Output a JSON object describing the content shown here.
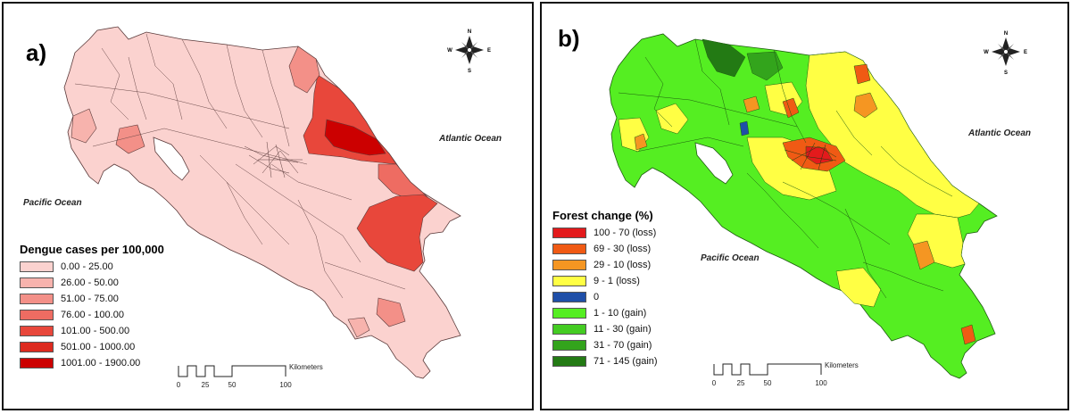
{
  "panel_a": {
    "label": "a)",
    "ocean_pacific": "Pacific Ocean",
    "ocean_atlantic": "Atlantic Ocean",
    "legend_title": "Dengue cases per 100,000",
    "legend": [
      {
        "label": "0.00 - 25.00",
        "color": "#fbd2cf"
      },
      {
        "label": "26.00 - 50.00",
        "color": "#f7b3ad"
      },
      {
        "label": "51.00 - 75.00",
        "color": "#f39088"
      },
      {
        "label": "76.00 - 100.00",
        "color": "#ee6c62"
      },
      {
        "label": "101.00 - 500.00",
        "color": "#e8473b"
      },
      {
        "label": "501.00 - 1000.00",
        "color": "#dd2a1f"
      },
      {
        "label": "1001.00 - 1900.00",
        "color": "#cc0000"
      }
    ],
    "scale": {
      "unit": "Kilometers",
      "ticks": [
        "0",
        "25",
        "50",
        "100"
      ]
    },
    "compass": {
      "n": "N",
      "s": "S",
      "e": "E",
      "w": "W"
    }
  },
  "panel_b": {
    "label": "b)",
    "ocean_pacific": "Pacific Ocean",
    "ocean_atlantic": "Atlantic Ocean",
    "legend_title": "Forest change (%)",
    "legend": [
      {
        "label": "100 - 70 (loss)",
        "color": "#e31a1c"
      },
      {
        "label": "69 - 30 (loss)",
        "color": "#f05a14"
      },
      {
        "label": "29 - 10 (loss)",
        "color": "#f59622"
      },
      {
        "label": "9 - 1 (loss)",
        "color": "#ffff44"
      },
      {
        "label": "0",
        "color": "#1f4fa8"
      },
      {
        "label": "1 - 10 (gain)",
        "color": "#55ee22"
      },
      {
        "label": "11 - 30 (gain)",
        "color": "#44cc22"
      },
      {
        "label": "31 - 70 (gain)",
        "color": "#33a41c"
      },
      {
        "label": "71 - 145 (gain)",
        "color": "#237a14"
      }
    ],
    "scale": {
      "unit": "Kilometers",
      "ticks": [
        "0",
        "25",
        "50",
        "100"
      ]
    },
    "compass": {
      "n": "N",
      "s": "S",
      "e": "E",
      "w": "W"
    }
  }
}
